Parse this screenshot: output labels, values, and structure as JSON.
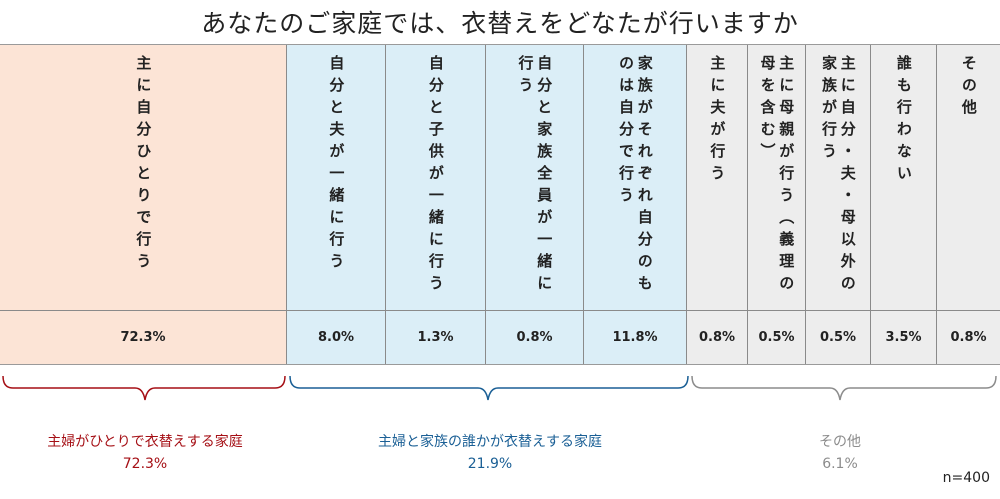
{
  "title": "あなたのご家庭では、衣替えをどなたが行いますか",
  "colors": {
    "self": "#a50f15",
    "family": "#1a5f95",
    "other": "#8c8c8c"
  },
  "chart_data": {
    "type": "table",
    "title": "あなたのご家庭では、衣替えをどなたが行いますか",
    "categories": [
      "主に自分ひとりで行う",
      "自分と夫が一緒に行う",
      "自分と子供が一緒に行う",
      "自分と家族全員が一緒に行う",
      "家族がそれぞれ自分のものは自分で行う",
      "主に夫が行う",
      "主に母親が行う（義理の母を含む）",
      "主に自分・夫・母以外の家族が行う",
      "誰も行わない",
      "その他"
    ],
    "values": [
      72.3,
      8.0,
      1.3,
      0.8,
      11.8,
      0.8,
      0.5,
      0.5,
      3.5,
      0.8
    ],
    "value_labels": [
      "72.3%",
      "8.0%",
      "1.3%",
      "0.8%",
      "11.8%",
      "0.8%",
      "0.5%",
      "0.5%",
      "3.5%",
      "0.8%"
    ],
    "groups": [
      {
        "name": "主婦がひとりで衣替えする家庭",
        "value_label": "72.3%",
        "members": [
          0
        ]
      },
      {
        "name": "主婦と家族の誰かが衣替えする家庭",
        "value_label": "21.9%",
        "members": [
          1,
          2,
          3,
          4
        ]
      },
      {
        "name": "その他",
        "value_label": "6.1%",
        "members": [
          5,
          6,
          7,
          8,
          9
        ]
      }
    ],
    "sample": "n=400"
  }
}
